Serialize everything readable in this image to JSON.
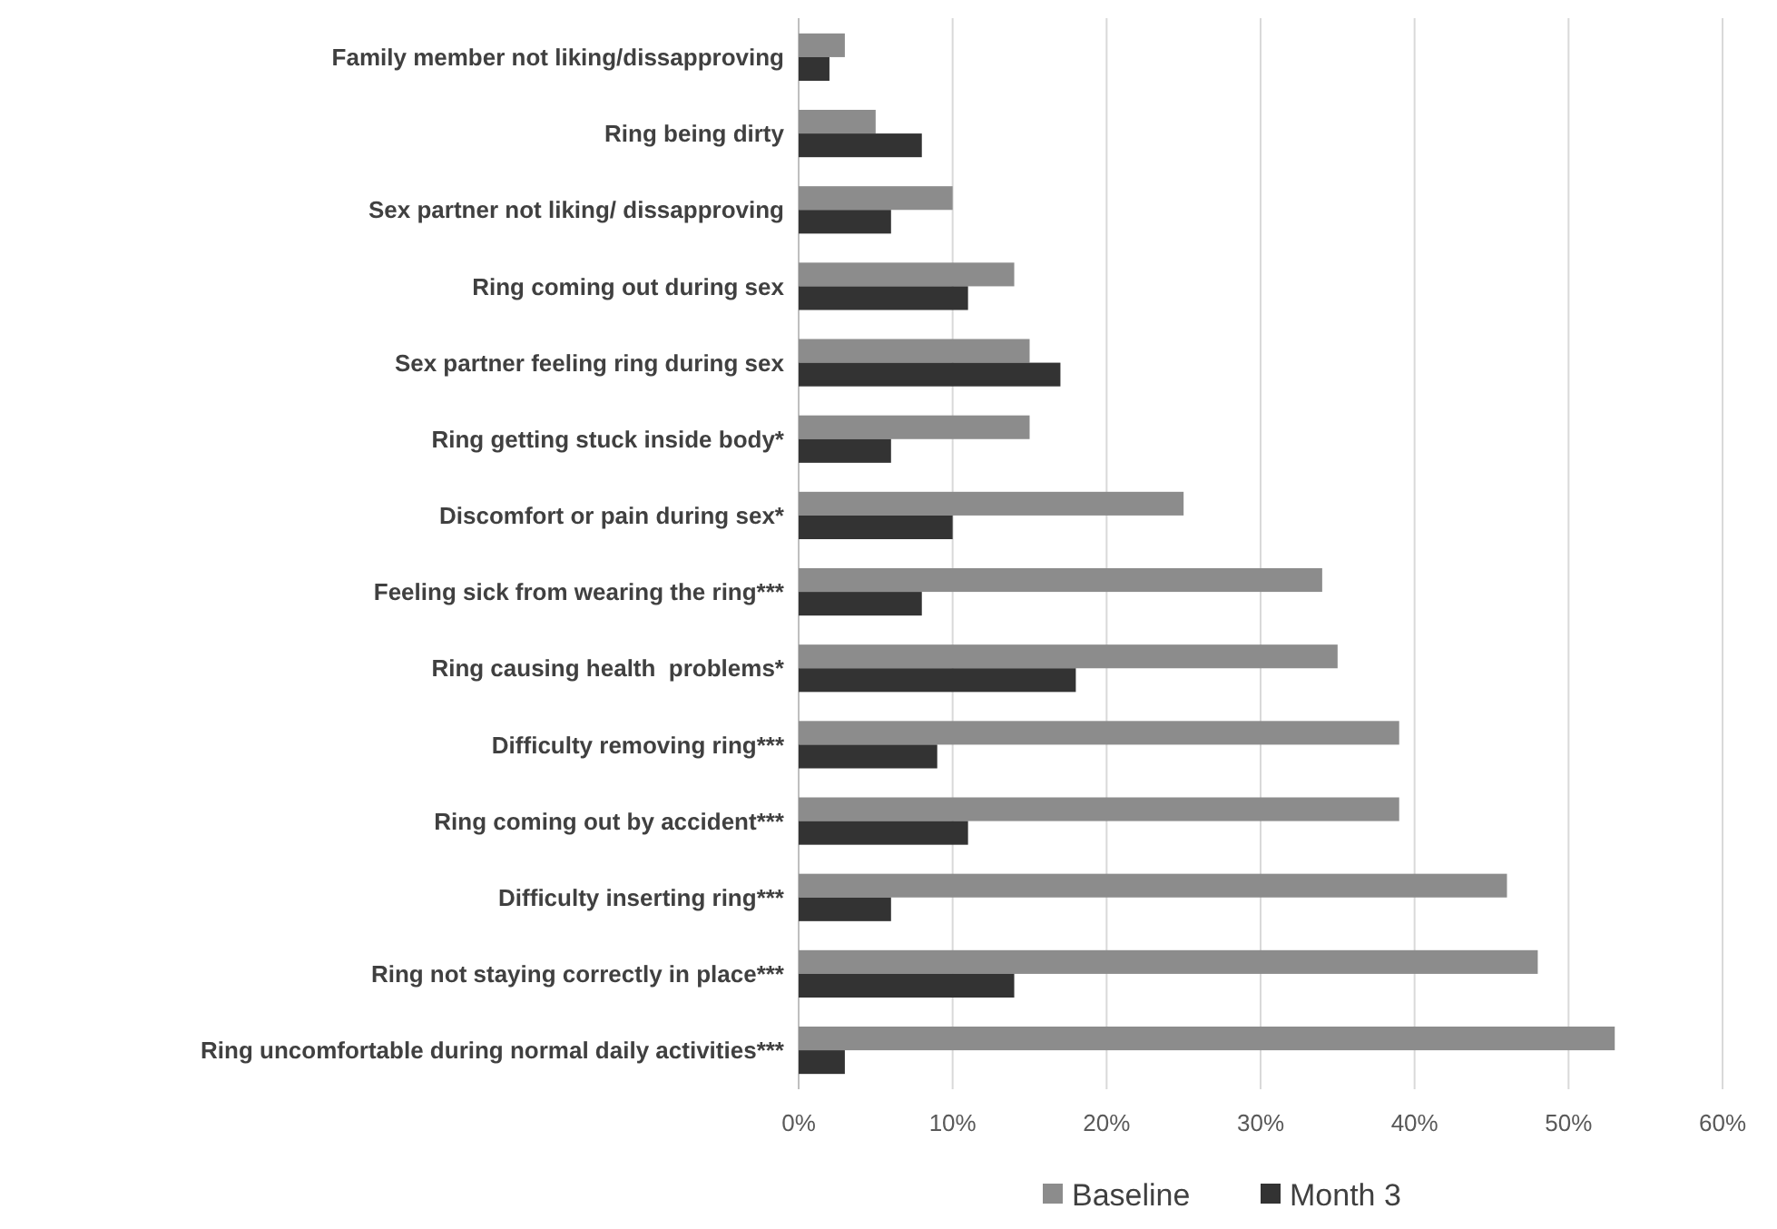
{
  "chart_data": {
    "type": "bar",
    "orientation": "horizontal",
    "categories": [
      "Family member not liking/dissapproving",
      "Ring being dirty",
      "Sex partner not liking/ dissapproving",
      "Ring coming out during sex",
      "Sex partner feeling ring during sex",
      "Ring getting stuck inside body*",
      "Discomfort or pain during sex*",
      "Feeling sick from wearing the ring***",
      "Ring causing health  problems*",
      "Difficulty removing ring***",
      "Ring coming out by accident***",
      "Difficulty inserting ring***",
      "Ring not staying correctly in place***",
      "Ring uncomfortable during normal daily activities***"
    ],
    "series": [
      {
        "name": "Baseline",
        "color": "#8c8c8c",
        "values": [
          3,
          5,
          10,
          14,
          15,
          15,
          25,
          34,
          35,
          39,
          39,
          46,
          48,
          53
        ]
      },
      {
        "name": "Month 3",
        "color": "#333333",
        "values": [
          2,
          8,
          6,
          11,
          17,
          6,
          10,
          8,
          18,
          9,
          11,
          6,
          14,
          3
        ]
      }
    ],
    "xlim": [
      0,
      60
    ],
    "xticks": [
      {
        "value": 0,
        "label": "0%"
      },
      {
        "value": 10,
        "label": "10%"
      },
      {
        "value": 20,
        "label": "20%"
      },
      {
        "value": 30,
        "label": "30%"
      },
      {
        "value": 40,
        "label": "40%"
      },
      {
        "value": 50,
        "label": "50%"
      },
      {
        "value": 60,
        "label": "60%"
      }
    ],
    "grid": "x",
    "legend": "bottom"
  }
}
